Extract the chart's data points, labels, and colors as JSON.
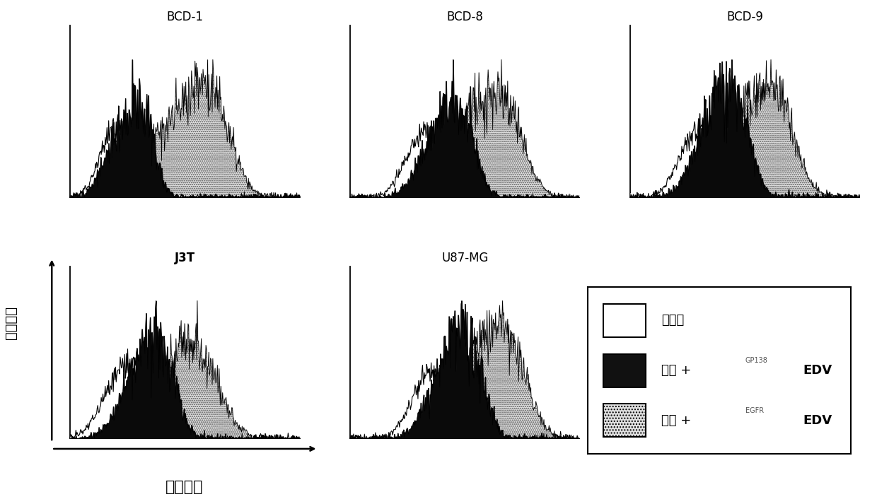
{
  "panel_titles": [
    "BCD-1",
    "BCD-8",
    "BCD-9",
    "J3T",
    "U87-MG"
  ],
  "panel_titles_bold": [
    false,
    false,
    false,
    true,
    false
  ],
  "ylabel": "顯粒计数",
  "xlabel": "荧光强度",
  "legend_label1": "仅细胞",
  "legend_label2": "细胞 + EDV",
  "legend_label2_super": "GP138",
  "legend_label3": "细胞 + EDV",
  "legend_label3_super": "EGFR",
  "background_color": "#ffffff",
  "egfr_fill_color": "#e8e8e8",
  "gp138_fill_color": "#111111",
  "cells_fill_color": "#ffffff"
}
